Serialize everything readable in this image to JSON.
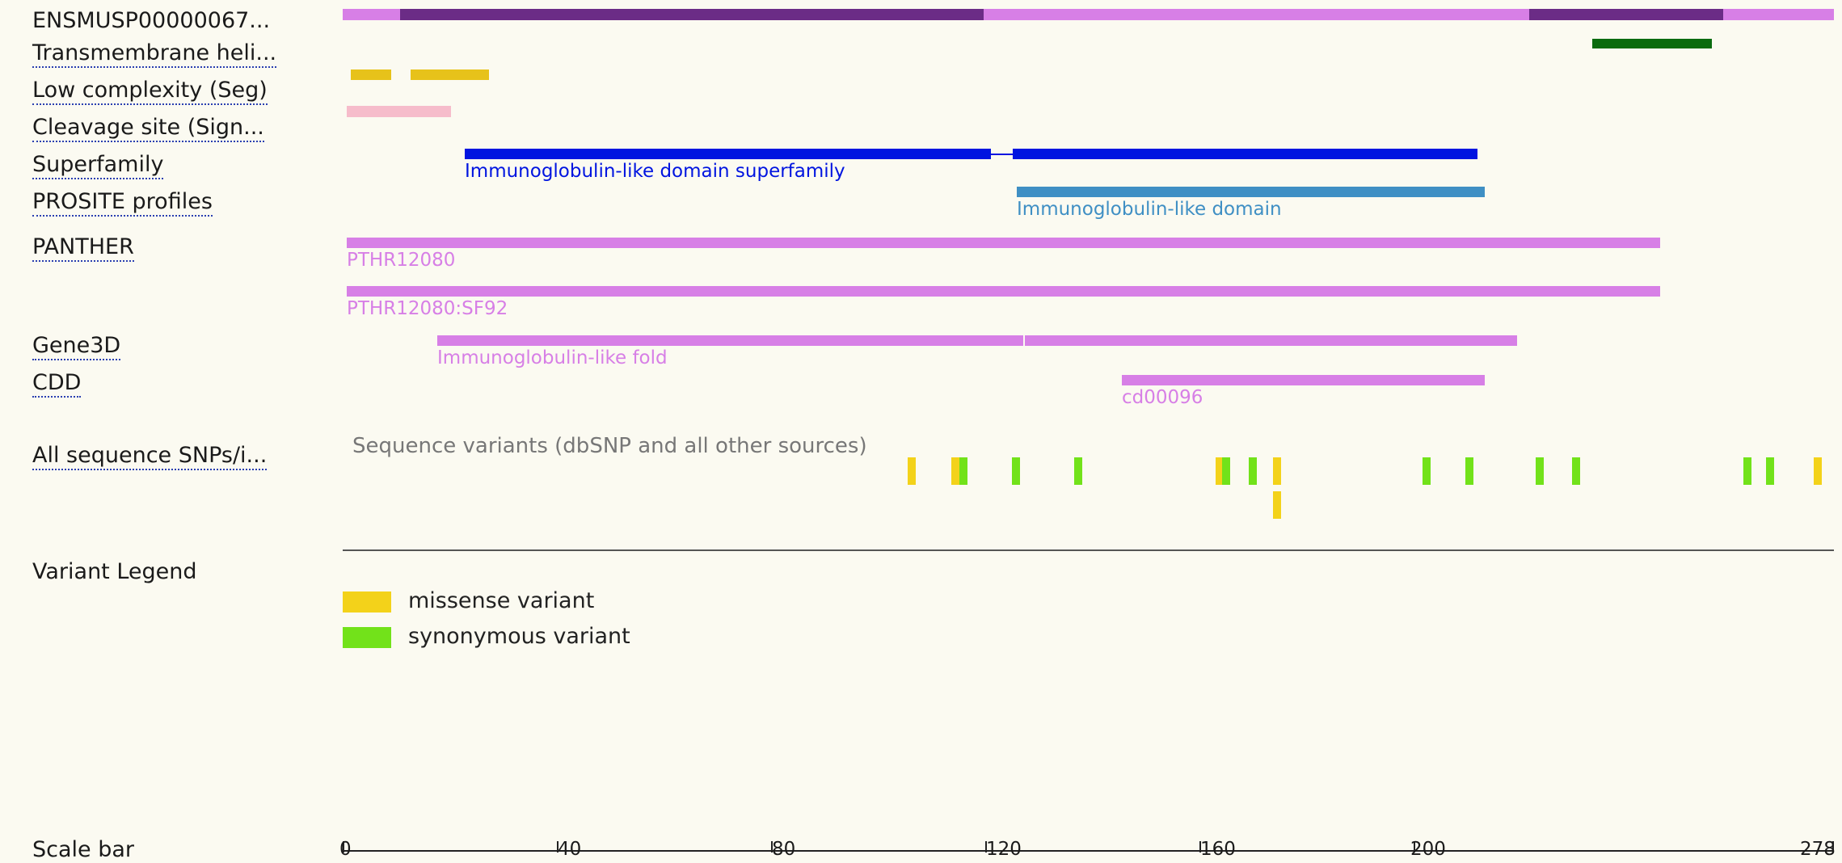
{
  "tracks": {
    "protein": "ENSMUSP00000067...",
    "transmembrane": "Transmembrane heli...",
    "low_complexity": "Low complexity (Seg)",
    "cleavage": "Cleavage site (Sign...",
    "superfamily": "Superfamily",
    "prosite": "PROSITE profiles",
    "panther": "PANTHER",
    "gene3d": "Gene3D",
    "cdd": "CDD",
    "snps": "All sequence SNPs/i...",
    "variant_legend": "Variant Legend",
    "scale_bar": "Scale bar"
  },
  "features": {
    "superfamily": "Immunoglobulin-like domain superfamily",
    "prosite": "Immunoglobulin-like domain",
    "panther_1": "PTHR12080",
    "panther_2": "PTHR12080:SF92",
    "gene3d": "Immunoglobulin-like fold",
    "cdd": "cd00096",
    "snps_caption": "Sequence variants (dbSNP and all other sources)"
  },
  "legend": {
    "missense": "missense variant",
    "synonymous": "synonymous variant"
  },
  "scale": {
    "length": 278,
    "ticks": [
      "0",
      "40",
      "80",
      "120",
      "160",
      "200",
      "278"
    ]
  },
  "colors": {
    "background": "#fbfaf1",
    "protein_light": "#d77fe6",
    "protein_dark": "#6b2c86",
    "transmembrane": "#0a6b10",
    "low_complexity": "#e7c21a",
    "cleavage": "#f6bccb",
    "superfamily": "#0014e0",
    "prosite": "#3f8fc4",
    "panther": "#d77fe6",
    "missense": "#f3d21a",
    "synonymous": "#72e21a"
  }
}
